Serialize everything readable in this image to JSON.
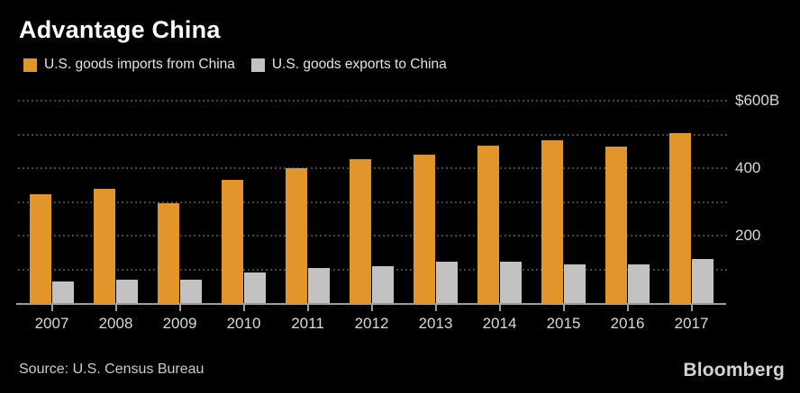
{
  "header": {
    "title": "Advantage China"
  },
  "legend": [
    {
      "label": "U.S. goods imports from China",
      "color": "#E2952B"
    },
    {
      "label": "U.S. goods exports to China",
      "color": "#C2C2C2"
    }
  ],
  "chart_data": {
    "type": "bar",
    "title": "Advantage China",
    "units": "billions of U.S. dollars",
    "categories": [
      "2007",
      "2008",
      "2009",
      "2010",
      "2011",
      "2012",
      "2013",
      "2014",
      "2015",
      "2016",
      "2017"
    ],
    "series": [
      {
        "name": "U.S. goods imports from China",
        "color": "#E2952B",
        "values": [
          322,
          338,
          296,
          365,
          399,
          426,
          440,
          468,
          483,
          463,
          505
        ]
      },
      {
        "name": "U.S. goods exports to China",
        "color": "#C2C2C2",
        "values": [
          63,
          70,
          69,
          92,
          104,
          110,
          122,
          124,
          116,
          115,
          130
        ]
      }
    ],
    "xlabel": "",
    "ylabel": "",
    "ylim": [
      0,
      600
    ],
    "grid": "dotted-horizontal",
    "gridline_values": [
      600,
      500,
      400,
      300,
      200,
      100
    ],
    "y_axis_labels": [
      {
        "value": 600,
        "text": "$600B"
      },
      {
        "value": 400,
        "text": "400"
      },
      {
        "value": 200,
        "text": "200"
      }
    ],
    "legend_position": "top-left"
  },
  "footer": {
    "source": "Source: U.S. Census Bureau",
    "brand": "Bloomberg"
  }
}
